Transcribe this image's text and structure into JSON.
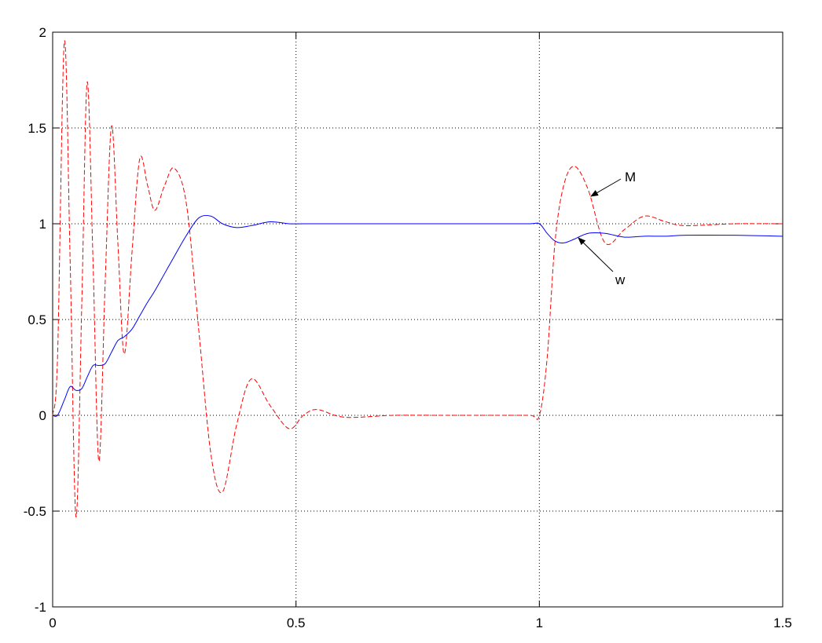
{
  "chart_data": {
    "type": "line",
    "x": [
      0,
      0.01,
      0.024,
      0.036,
      0.048,
      0.06,
      0.071,
      0.083,
      0.095,
      0.108,
      0.121,
      0.134,
      0.147,
      0.163,
      0.179,
      0.195,
      0.21,
      0.23,
      0.25,
      0.275,
      0.3,
      0.325,
      0.349,
      0.378,
      0.408,
      0.447,
      0.486,
      0.515,
      0.544,
      0.6,
      0.7,
      0.8,
      0.9,
      0.98,
      1.0,
      1.016,
      1.032,
      1.05,
      1.072,
      1.1,
      1.135,
      1.175,
      1.216,
      1.26,
      1.3,
      1.4,
      1.5
    ],
    "series": [
      {
        "name": "M",
        "color": "#ff0000",
        "linestyle": "dashed",
        "values": [
          0,
          0.3,
          1.95,
          0.8,
          -0.53,
          0.6,
          1.74,
          0.8,
          -0.24,
          0.7,
          1.51,
          0.9,
          0.32,
          0.85,
          1.34,
          1.2,
          1.07,
          1.2,
          1.29,
          1.1,
          0.45,
          -0.2,
          -0.4,
          -0.05,
          0.19,
          0.05,
          -0.07,
          0.0,
          0.03,
          -0.01,
          0.0,
          0.0,
          0.0,
          0.0,
          0.0,
          0.3,
          0.9,
          1.2,
          1.3,
          1.18,
          0.9,
          0.97,
          1.04,
          1.01,
          0.99,
          1.0,
          1.0
        ]
      },
      {
        "name": "w",
        "color": "#0000ff",
        "linestyle": "solid",
        "values": [
          0,
          0.0,
          0.08,
          0.15,
          0.13,
          0.14,
          0.2,
          0.26,
          0.26,
          0.27,
          0.33,
          0.39,
          0.41,
          0.45,
          0.52,
          0.59,
          0.65,
          0.74,
          0.83,
          0.94,
          1.03,
          1.04,
          1.0,
          0.98,
          0.99,
          1.01,
          1.0,
          1.0,
          1.0,
          1.0,
          1.0,
          1.0,
          1.0,
          1.0,
          1.0,
          0.95,
          0.91,
          0.9,
          0.92,
          0.95,
          0.95,
          0.93,
          0.935,
          0.935,
          0.94,
          0.94,
          0.935
        ]
      }
    ],
    "annotations": [
      "M",
      "w"
    ],
    "xlim": [
      0,
      1.5
    ],
    "xticks": [
      0,
      0.5,
      1,
      1.5
    ],
    "ylim": [
      -1,
      2
    ],
    "yticks": [
      -1,
      -0.5,
      0,
      0.5,
      1,
      1.5,
      2
    ],
    "grid": true
  }
}
